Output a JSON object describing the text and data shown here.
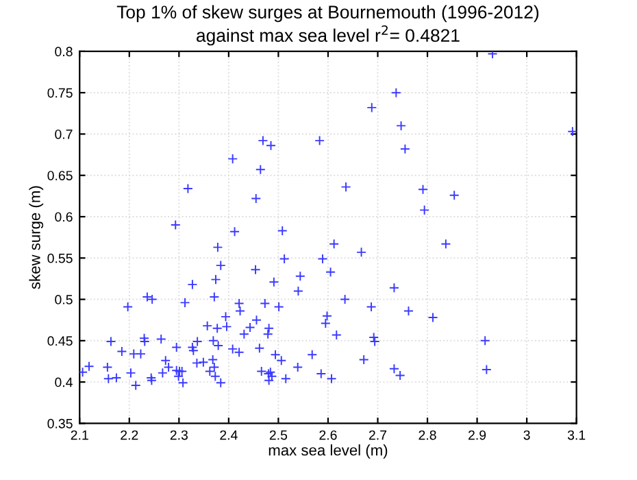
{
  "chart_data": {
    "type": "scatter",
    "title": "Top 1% of skew surges at Bournemouth (1996-2012)\nagainst max sea level r$^{2}$= 0.4821",
    "xlabel": "max sea level (m)",
    "ylabel": "skew surge (m)",
    "xlim": [
      2.1,
      3.1
    ],
    "ylim": [
      0.35,
      0.8
    ],
    "xticks": [
      2.1,
      2.2,
      2.3,
      2.4,
      2.5,
      2.6,
      2.7,
      2.8,
      2.9,
      3,
      3.1
    ],
    "yticks": [
      0.35,
      0.4,
      0.45,
      0.5,
      0.55,
      0.6,
      0.65,
      0.7,
      0.75,
      0.8
    ],
    "grid": true,
    "marker": "cross",
    "series": [
      {
        "color": "#3a3aff",
        "x": [
          2.318,
          2.408,
          2.469,
          2.485,
          2.464,
          2.455,
          2.583,
          2.636,
          2.931,
          2.737,
          2.688,
          2.747,
          2.755,
          3.092,
          2.791,
          2.854,
          2.794,
          2.837,
          2.667,
          2.634,
          2.733,
          2.687,
          2.762,
          2.811,
          2.692,
          2.694,
          2.916,
          2.672,
          2.733,
          2.745,
          2.919,
          2.293,
          2.412,
          2.508,
          2.378,
          2.512,
          2.384,
          2.454,
          2.589,
          2.612,
          2.605,
          2.544,
          2.374,
          2.491,
          2.327,
          2.54,
          2.371,
          2.312,
          2.236,
          2.246,
          2.197,
          2.473,
          2.421,
          2.501,
          2.423,
          2.394,
          2.598,
          2.595,
          2.357,
          2.377,
          2.396,
          2.456,
          2.443,
          2.481,
          2.479,
          2.431,
          2.617,
          2.369,
          2.379,
          2.337,
          2.231,
          2.23,
          2.163,
          2.264,
          2.327,
          2.329,
          2.295,
          2.185,
          2.209,
          2.223,
          2.408,
          2.421,
          2.462,
          2.494,
          2.506,
          2.368,
          2.336,
          2.349,
          2.273,
          2.279,
          2.371,
          2.362,
          2.295,
          2.301,
          2.306,
          2.299,
          2.308,
          2.373,
          2.384,
          2.484,
          2.466,
          2.487,
          2.48,
          2.481,
          2.515,
          2.267,
          2.244,
          2.245,
          2.213,
          2.203,
          2.174,
          2.158,
          2.156,
          2.119,
          2.106,
          2.586,
          2.607,
          2.539,
          2.568
        ],
        "values": [
          0.634,
          0.67,
          0.692,
          0.686,
          0.657,
          0.622,
          0.692,
          0.636,
          0.797,
          0.75,
          0.732,
          0.71,
          0.682,
          0.703,
          0.633,
          0.626,
          0.608,
          0.567,
          0.557,
          0.5,
          0.514,
          0.491,
          0.486,
          0.478,
          0.454,
          0.449,
          0.45,
          0.427,
          0.416,
          0.408,
          0.415,
          0.59,
          0.582,
          0.583,
          0.563,
          0.549,
          0.541,
          0.536,
          0.549,
          0.567,
          0.533,
          0.528,
          0.524,
          0.521,
          0.518,
          0.51,
          0.503,
          0.496,
          0.503,
          0.5,
          0.491,
          0.495,
          0.495,
          0.491,
          0.486,
          0.479,
          0.48,
          0.471,
          0.468,
          0.465,
          0.467,
          0.475,
          0.466,
          0.465,
          0.458,
          0.458,
          0.457,
          0.45,
          0.444,
          0.449,
          0.449,
          0.453,
          0.449,
          0.452,
          0.442,
          0.438,
          0.442,
          0.437,
          0.434,
          0.434,
          0.44,
          0.436,
          0.441,
          0.433,
          0.426,
          0.427,
          0.423,
          0.424,
          0.426,
          0.418,
          0.418,
          0.413,
          0.414,
          0.413,
          0.413,
          0.407,
          0.399,
          0.407,
          0.399,
          0.412,
          0.413,
          0.407,
          0.41,
          0.402,
          0.404,
          0.411,
          0.405,
          0.402,
          0.396,
          0.411,
          0.405,
          0.404,
          0.418,
          0.419,
          0.412,
          0.41,
          0.404,
          0.418,
          0.433
        ]
      }
    ]
  }
}
